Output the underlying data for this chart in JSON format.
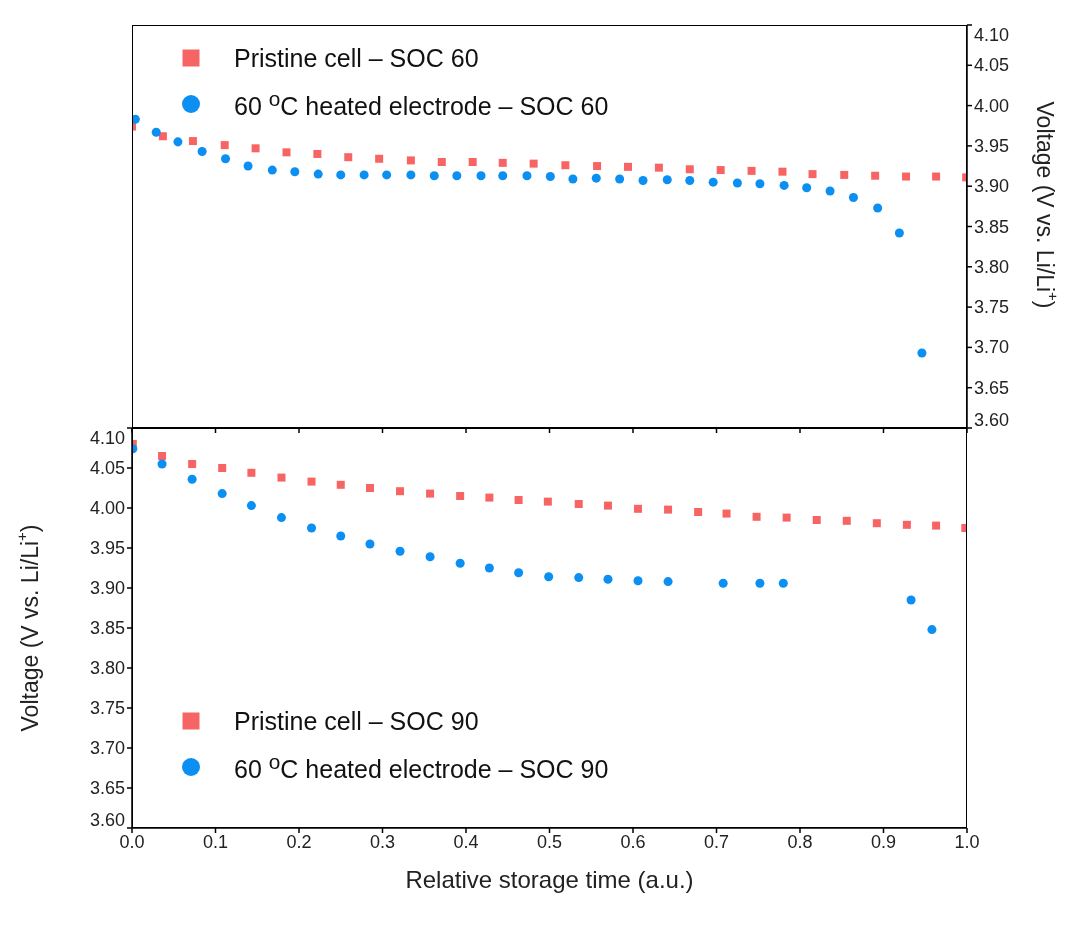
{
  "chart_data": [
    {
      "type": "scatter",
      "xlim": [
        0,
        1
      ],
      "xticks": [
        {
          "value": 0,
          "label": null
        },
        {
          "value": 0.1,
          "label": null
        },
        {
          "value": 0.2,
          "label": null
        },
        {
          "value": 0.3,
          "label": null
        },
        {
          "value": 0.4,
          "label": null
        },
        {
          "value": 0.5,
          "label": null
        },
        {
          "value": 0.6,
          "label": null
        },
        {
          "value": 0.7,
          "label": null
        },
        {
          "value": 0.8,
          "label": null
        },
        {
          "value": 0.9,
          "label": null
        },
        {
          "value": 1,
          "label": null
        }
      ],
      "y2lim": [
        3.6,
        4.1
      ],
      "y2ticks": [
        {
          "value": 3.6,
          "label": "3.60"
        },
        {
          "value": 3.65,
          "label": "3.65"
        },
        {
          "value": 3.7,
          "label": "3.70"
        },
        {
          "value": 3.75,
          "label": "3.75"
        },
        {
          "value": 3.8,
          "label": "3.80"
        },
        {
          "value": 3.85,
          "label": "3.85"
        },
        {
          "value": 3.9,
          "label": "3.90"
        },
        {
          "value": 3.95,
          "label": "3.95"
        },
        {
          "value": 4.0,
          "label": "4.00"
        },
        {
          "value": 4.05,
          "label": "4.05"
        },
        {
          "value": 4.1,
          "label": "4.10"
        }
      ],
      "y2label": "Voltage (V vs. Li/Li$^{+}$)",
      "tick_labels": "y",
      "legend": "top left",
      "series": [
        {
          "name": "Pristine cell – SOC 60",
          "color": "#f76464",
          "marker": "square",
          "axis": "y2",
          "x": [
            0,
            0.037,
            0.073,
            0.111,
            0.148,
            0.185,
            0.222,
            0.259,
            0.296,
            0.334,
            0.371,
            0.408,
            0.444,
            0.481,
            0.519,
            0.557,
            0.594,
            0.631,
            0.668,
            0.705,
            0.742,
            0.779,
            0.815,
            0.853,
            0.89,
            0.927,
            0.963,
            0.999
          ],
          "values": [
            3.974,
            3.962,
            3.956,
            3.951,
            3.947,
            3.942,
            3.94,
            3.936,
            3.934,
            3.932,
            3.93,
            3.93,
            3.929,
            3.928,
            3.926,
            3.925,
            3.924,
            3.923,
            3.921,
            3.92,
            3.919,
            3.918,
            3.915,
            3.914,
            3.913,
            3.912,
            3.912,
            3.911
          ]
        },
        {
          "name": "60 $^{o}$C heated electrode – SOC 60",
          "color": "#0b8ff2",
          "marker": "circle",
          "axis": "y2",
          "x": [
            0.004,
            0.029,
            0.055,
            0.084,
            0.112,
            0.139,
            0.168,
            0.195,
            0.223,
            0.25,
            0.278,
            0.305,
            0.334,
            0.362,
            0.389,
            0.418,
            0.444,
            0.473,
            0.501,
            0.528,
            0.556,
            0.584,
            0.612,
            0.641,
            0.668,
            0.696,
            0.725,
            0.752,
            0.781,
            0.808,
            0.836,
            0.864,
            0.893,
            0.919,
            0.946
          ],
          "values": [
            3.983,
            3.967,
            3.955,
            3.943,
            3.934,
            3.925,
            3.92,
            3.918,
            3.915,
            3.914,
            3.914,
            3.914,
            3.914,
            3.913,
            3.913,
            3.913,
            3.913,
            3.913,
            3.912,
            3.909,
            3.91,
            3.909,
            3.907,
            3.908,
            3.907,
            3.905,
            3.904,
            3.903,
            3.901,
            3.898,
            3.894,
            3.886,
            3.873,
            3.842,
            3.693
          ]
        }
      ]
    },
    {
      "type": "scatter",
      "xlim": [
        0,
        1
      ],
      "xticks": [
        {
          "value": 0,
          "label": "0.0"
        },
        {
          "value": 0.1,
          "label": "0.1"
        },
        {
          "value": 0.2,
          "label": "0.2"
        },
        {
          "value": 0.3,
          "label": "0.3"
        },
        {
          "value": 0.4,
          "label": "0.4"
        },
        {
          "value": 0.5,
          "label": "0.5"
        },
        {
          "value": 0.6,
          "label": "0.6"
        },
        {
          "value": 0.7,
          "label": "0.7"
        },
        {
          "value": 0.8,
          "label": "0.8"
        },
        {
          "value": 0.9,
          "label": "0.9"
        },
        {
          "value": 1,
          "label": "1.0"
        }
      ],
      "ylim": [
        3.6,
        4.1
      ],
      "yticks": [
        {
          "value": 3.6,
          "label": "3.60"
        },
        {
          "value": 3.65,
          "label": "3.65"
        },
        {
          "value": 3.7,
          "label": "3.70"
        },
        {
          "value": 3.75,
          "label": "3.75"
        },
        {
          "value": 3.8,
          "label": "3.80"
        },
        {
          "value": 3.85,
          "label": "3.85"
        },
        {
          "value": 3.9,
          "label": "3.90"
        },
        {
          "value": 3.95,
          "label": "3.95"
        },
        {
          "value": 4.0,
          "label": "4.00"
        },
        {
          "value": 4.05,
          "label": "4.05"
        },
        {
          "value": 4.1,
          "label": "4.10"
        }
      ],
      "xlabel": "Relative storage time (a.u.)",
      "ylabel": "Voltage (V vs. Li/Li$^{+}$)",
      "legend": "bottom left",
      "series": [
        {
          "name": "Pristine cell – SOC 90",
          "color": "#f76464",
          "marker": "square",
          "x": [
            0.001,
            0.036,
            0.072,
            0.108,
            0.143,
            0.179,
            0.215,
            0.25,
            0.285,
            0.321,
            0.357,
            0.393,
            0.428,
            0.463,
            0.498,
            0.535,
            0.57,
            0.606,
            0.642,
            0.678,
            0.712,
            0.748,
            0.784,
            0.82,
            0.856,
            0.892,
            0.928,
            0.963,
            0.998
          ],
          "values": [
            4.08,
            4.065,
            4.055,
            4.05,
            4.044,
            4.038,
            4.033,
            4.029,
            4.025,
            4.021,
            4.018,
            4.015,
            4.013,
            4.01,
            4.008,
            4.005,
            4.003,
            3.999,
            3.998,
            3.995,
            3.993,
            3.989,
            3.988,
            3.985,
            3.984,
            3.981,
            3.979,
            3.978,
            3.975
          ]
        },
        {
          "name": "60 $^{o}$C heated electrode – SOC 90",
          "color": "#0b8ff2",
          "marker": "circle",
          "x": [
            0.001,
            0.036,
            0.072,
            0.108,
            0.143,
            0.179,
            0.215,
            0.25,
            0.285,
            0.321,
            0.357,
            0.393,
            0.428,
            0.463,
            0.499,
            0.535,
            0.57,
            0.606,
            0.642,
            0.708,
            0.752,
            0.78,
            0.933,
            0.958
          ],
          "values": [
            4.074,
            4.055,
            4.036,
            4.018,
            4.003,
            3.988,
            3.975,
            3.965,
            3.955,
            3.946,
            3.939,
            3.931,
            3.925,
            3.919,
            3.914,
            3.913,
            3.911,
            3.909,
            3.908,
            3.906,
            3.906,
            3.906,
            3.885,
            3.848
          ]
        }
      ]
    }
  ]
}
